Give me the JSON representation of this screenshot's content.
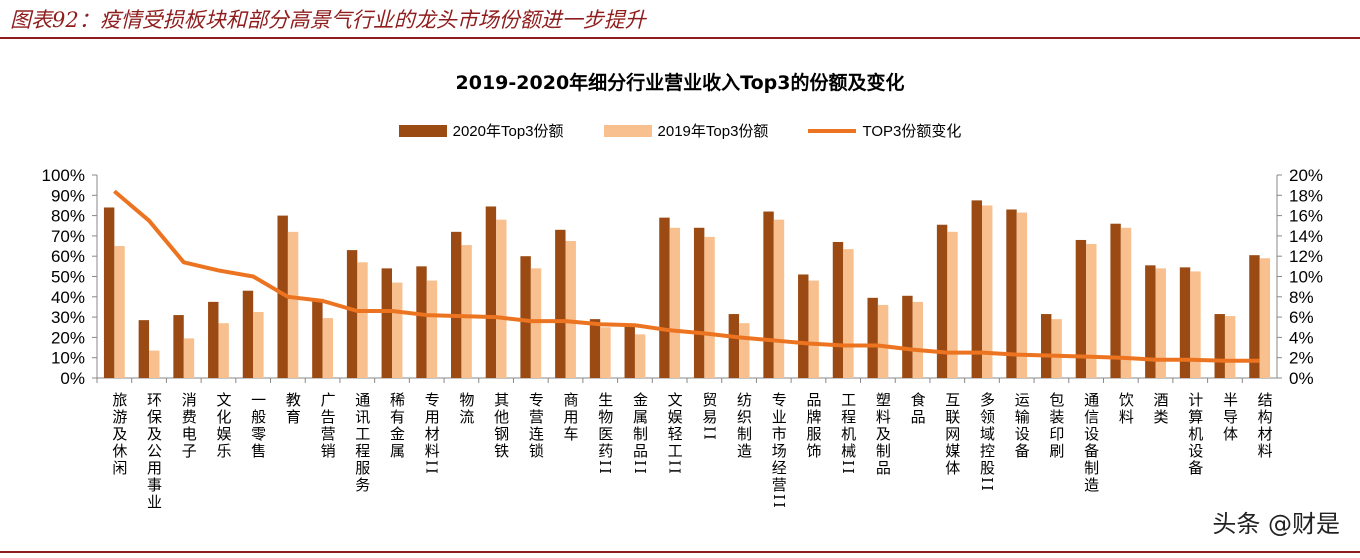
{
  "header": "图表92：疫情受损板块和部分高景气行业的龙头市场份额进一步提升",
  "watermark": "头条 @财是",
  "colors": {
    "bar2020": "#9a4a12",
    "bar2019": "#f8c08e",
    "line": "#ec7420",
    "header": "#8f1d1d"
  },
  "chart_data": {
    "type": "bar+line",
    "title": "2019-2020年细分行业营业收入Top3的份额及变化",
    "legend_position": "top",
    "grid": false,
    "categories": [
      "旅游及休闲",
      "环保及公用事业",
      "消费电子",
      "文化娱乐",
      "一般零售",
      "教育",
      "广告营销",
      "通讯工程服务",
      "稀有金属",
      "专用材料II",
      "物流",
      "其他钢铁",
      "专营连锁",
      "商用车",
      "生物医药II",
      "金属制品II",
      "文娱轻工II",
      "贸易II",
      "纺织制造",
      "专业市场经营II",
      "品牌服饰",
      "工程机械II",
      "塑料及制品",
      "食品",
      "互联网媒体",
      "多领域控股II",
      "运输设备",
      "包装印刷",
      "通信设备制造",
      "饮料",
      "酒类",
      "计算机设备",
      "半导体",
      "结构材料"
    ],
    "series": [
      {
        "name": "2020年Top3份额",
        "type": "bar",
        "axis": "left",
        "values": [
          84,
          28.5,
          31,
          37.5,
          43,
          80,
          38,
          63,
          54,
          55,
          72,
          84.5,
          60,
          73,
          29,
          25.5,
          79,
          74,
          31.5,
          82,
          51,
          67,
          39.5,
          40.5,
          75.5,
          87.5,
          83,
          31.5,
          68,
          76,
          55.5,
          54.5,
          31.5,
          60.5
        ]
      },
      {
        "name": "2019年Top3份额",
        "type": "bar",
        "axis": "left",
        "values": [
          65,
          13.5,
          19.5,
          27,
          32.5,
          72,
          29.5,
          57,
          47,
          48,
          65.5,
          78,
          54,
          67.5,
          25,
          21.5,
          74,
          69.5,
          27,
          78,
          48,
          63.5,
          36,
          37.5,
          72,
          85,
          81.5,
          29,
          66,
          74,
          54,
          52.5,
          30.5,
          59
        ]
      },
      {
        "name": "TOP3份额变化",
        "type": "line",
        "axis": "right",
        "values": [
          18.4,
          15.5,
          11.4,
          10.6,
          10,
          8,
          7.6,
          6.6,
          6.6,
          6.2,
          6.1,
          6,
          5.6,
          5.6,
          5.3,
          5.2,
          4.7,
          4.4,
          4,
          3.7,
          3.4,
          3.2,
          3.2,
          2.8,
          2.5,
          2.5,
          2.3,
          2.2,
          2.1,
          2,
          1.8,
          1.8,
          1.7,
          1.7
        ]
      }
    ],
    "y_left": {
      "range": [
        0,
        100
      ],
      "ticks": [
        "0%",
        "10%",
        "20%",
        "30%",
        "40%",
        "50%",
        "60%",
        "70%",
        "80%",
        "90%",
        "100%"
      ]
    },
    "y_right": {
      "range": [
        0,
        20
      ],
      "ticks": [
        "0%",
        "2%",
        "4%",
        "6%",
        "8%",
        "10%",
        "12%",
        "14%",
        "16%",
        "18%",
        "20%"
      ]
    }
  }
}
